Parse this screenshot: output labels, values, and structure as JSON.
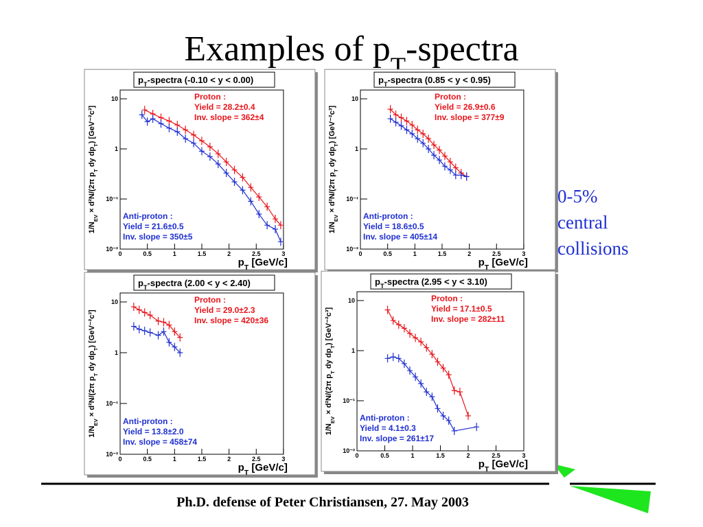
{
  "title_parts": [
    "Examples of p",
    "T",
    "-spectra"
  ],
  "side_note": [
    "0-5%",
    "central",
    "collisions"
  ],
  "footer": "Ph.D. defense of Peter Christiansen, 27. May 2003",
  "chart_data": [
    {
      "type": "scatter",
      "title_parts": [
        "p",
        "T",
        "-spectra (-0.10 < y < 0.00)"
      ],
      "xlabel_parts": [
        "p",
        "T",
        " [GeV/c]"
      ],
      "ylabel_parts": [
        "1/N",
        "EV",
        " × d²N/(2π p",
        "T",
        " dy dp",
        "T",
        ") [GeV⁻²c³]"
      ],
      "xlim": [
        0,
        3
      ],
      "xticks": [
        0,
        0.5,
        1,
        1.5,
        2,
        2.5,
        3
      ],
      "ylim": [
        0.01,
        15
      ],
      "yscale": "log",
      "yticks": [
        {
          "value": 0.01,
          "label": "10⁻²"
        },
        {
          "value": 0.1,
          "label": "10⁻¹"
        },
        1,
        10
      ],
      "series": [
        {
          "name": "Proton :",
          "color": "#e8141a",
          "x": [
            0.45,
            0.6,
            0.75,
            0.9,
            1.05,
            1.2,
            1.35,
            1.5,
            1.65,
            1.8,
            1.95,
            2.1,
            2.25,
            2.4,
            2.55,
            2.7,
            2.85,
            2.95
          ],
          "values": [
            6.0,
            5.0,
            4.2,
            3.6,
            3.0,
            2.4,
            1.9,
            1.45,
            1.1,
            0.8,
            0.55,
            0.38,
            0.27,
            0.17,
            0.11,
            0.07,
            0.04,
            0.03
          ],
          "info": [
            "Yield = 28.2±0.4",
            "Inv. slope = 362±4"
          ],
          "corner": "top-right"
        },
        {
          "name": "Anti-proton :",
          "color": "#1f2fd0",
          "x": [
            0.4,
            0.5,
            0.6,
            0.75,
            0.9,
            1.05,
            1.2,
            1.35,
            1.5,
            1.65,
            1.8,
            1.95,
            2.1,
            2.25,
            2.4,
            2.55,
            2.7,
            2.85,
            2.95
          ],
          "values": [
            4.8,
            3.5,
            4.0,
            3.2,
            2.6,
            2.2,
            1.6,
            1.3,
            0.9,
            0.7,
            0.5,
            0.33,
            0.22,
            0.15,
            0.09,
            0.05,
            0.03,
            0.025,
            0.014
          ],
          "info": [
            "Yield = 21.6±0.5",
            "Inv. slope = 350±5"
          ],
          "corner": "bottom-left"
        }
      ]
    },
    {
      "type": "scatter",
      "title_parts": [
        "p",
        "T",
        "-spectra (0.85 < y < 0.95)"
      ],
      "xlabel_parts": [
        "p",
        "T",
        " [GeV/c]"
      ],
      "ylabel_parts": [
        "1/N",
        "EV",
        " × d²N/(2π p",
        "T",
        " dy dp",
        "T",
        ") [GeV⁻²c³]"
      ],
      "xlim": [
        0,
        3
      ],
      "xticks": [
        0,
        0.5,
        1,
        1.5,
        2,
        2.5,
        3
      ],
      "ylim": [
        0.01,
        15
      ],
      "yscale": "log",
      "yticks": [
        {
          "value": 0.01,
          "label": "10⁻²"
        },
        {
          "value": 0.1,
          "label": "10⁻¹"
        },
        1,
        10
      ],
      "series": [
        {
          "name": "Proton :",
          "color": "#e8141a",
          "x": [
            0.55,
            0.65,
            0.75,
            0.85,
            0.95,
            1.05,
            1.15,
            1.25,
            1.35,
            1.45,
            1.55,
            1.65,
            1.75,
            1.85,
            1.95
          ],
          "values": [
            6.2,
            4.8,
            4.2,
            3.6,
            3.0,
            2.4,
            2.0,
            1.6,
            1.2,
            0.95,
            0.72,
            0.55,
            0.42,
            0.33,
            0.28
          ],
          "info": [
            "Yield = 26.9±0.6",
            "Inv. slope = 377±9"
          ],
          "corner": "top-right"
        },
        {
          "name": "Anti-proton :",
          "color": "#1f2fd0",
          "x": [
            0.55,
            0.65,
            0.75,
            0.85,
            0.95,
            1.05,
            1.15,
            1.25,
            1.35,
            1.45,
            1.55,
            1.65,
            1.75,
            1.85,
            1.95
          ],
          "values": [
            4.0,
            3.4,
            2.9,
            2.4,
            2.0,
            1.6,
            1.3,
            1.0,
            0.75,
            0.6,
            0.45,
            0.38,
            0.3,
            0.3,
            0.28
          ],
          "info": [
            "Yield = 18.6±0.5",
            "Inv. slope = 405±14"
          ],
          "corner": "bottom-left"
        }
      ]
    },
    {
      "type": "scatter",
      "title_parts": [
        "p",
        "T",
        "-spectra (2.00 < y < 2.40)"
      ],
      "xlabel_parts": [
        "p",
        "T",
        " [GeV/c]"
      ],
      "ylabel_parts": [
        "1/N",
        "EV",
        " × d²N/(2π p",
        "T",
        " dy dp",
        "T",
        ") [GeV⁻²c³]"
      ],
      "xlim": [
        0,
        3
      ],
      "xticks": [
        0,
        0.5,
        1,
        1.5,
        2,
        2.5,
        3
      ],
      "ylim": [
        0.01,
        15
      ],
      "yscale": "log",
      "yticks": [
        {
          "value": 0.01,
          "label": "10⁻²"
        },
        {
          "value": 0.1,
          "label": "10⁻¹"
        },
        1,
        10
      ],
      "series": [
        {
          "name": "Proton :",
          "color": "#e8141a",
          "x": [
            0.25,
            0.35,
            0.45,
            0.55,
            0.7,
            0.8,
            0.9,
            1.0,
            1.1
          ],
          "values": [
            8.0,
            7.0,
            6.2,
            5.5,
            4.2,
            4.0,
            3.5,
            2.6,
            2.0
          ],
          "info": [
            "Yield = 29.0±2.3",
            "Inv. slope = 420±36"
          ],
          "corner": "top-right"
        },
        {
          "name": "Anti-proton :",
          "color": "#1f2fd0",
          "x": [
            0.25,
            0.35,
            0.45,
            0.55,
            0.7,
            0.8,
            0.9,
            1.0,
            1.1
          ],
          "values": [
            3.3,
            2.9,
            2.7,
            2.5,
            2.2,
            2.6,
            1.6,
            1.3,
            1.0
          ],
          "info": [
            "Yield = 13.8±2.0",
            "Inv. slope = 458±74"
          ],
          "corner": "bottom-left"
        }
      ]
    },
    {
      "type": "scatter",
      "title_parts": [
        "p",
        "T",
        "-spectra (2.95 < y < 3.10)"
      ],
      "xlabel_parts": [
        "p",
        "T",
        " [GeV/c]"
      ],
      "ylabel_parts": [
        "1/N",
        "EV",
        " × d²N/(2π p",
        "T",
        " dy dp",
        "T",
        ") [GeV⁻²c³]"
      ],
      "xlim": [
        0,
        3
      ],
      "xticks": [
        0,
        0.5,
        1,
        1.5,
        2,
        2.5,
        3
      ],
      "ylim": [
        0.01,
        15
      ],
      "yscale": "log",
      "yticks": [
        {
          "value": 0.01,
          "label": "10⁻²"
        },
        {
          "value": 0.1,
          "label": "10⁻¹"
        },
        1,
        10
      ],
      "series": [
        {
          "name": "Proton :",
          "color": "#e8141a",
          "x": [
            0.55,
            0.65,
            0.75,
            0.85,
            0.95,
            1.05,
            1.15,
            1.25,
            1.35,
            1.45,
            1.55,
            1.65,
            1.75,
            1.85,
            2.0
          ],
          "values": [
            6.5,
            4.0,
            3.3,
            2.8,
            2.2,
            1.8,
            1.5,
            1.15,
            0.85,
            0.6,
            0.45,
            0.33,
            0.16,
            0.15,
            0.05
          ],
          "info": [
            "Yield = 17.1±0.5",
            "Inv. slope = 282±11"
          ],
          "corner": "top-right"
        },
        {
          "name": "Anti-proton :",
          "color": "#1f2fd0",
          "x": [
            0.55,
            0.65,
            0.75,
            0.85,
            0.95,
            1.05,
            1.15,
            1.25,
            1.35,
            1.45,
            1.55,
            1.65,
            1.75,
            2.15
          ],
          "values": [
            0.7,
            0.75,
            0.7,
            0.55,
            0.4,
            0.3,
            0.22,
            0.15,
            0.12,
            0.07,
            0.05,
            0.04,
            0.025,
            0.03
          ],
          "info": [
            "Yield = 4.1±0.3",
            "Inv. slope = 261±17"
          ],
          "corner": "bottom-left"
        }
      ]
    }
  ]
}
